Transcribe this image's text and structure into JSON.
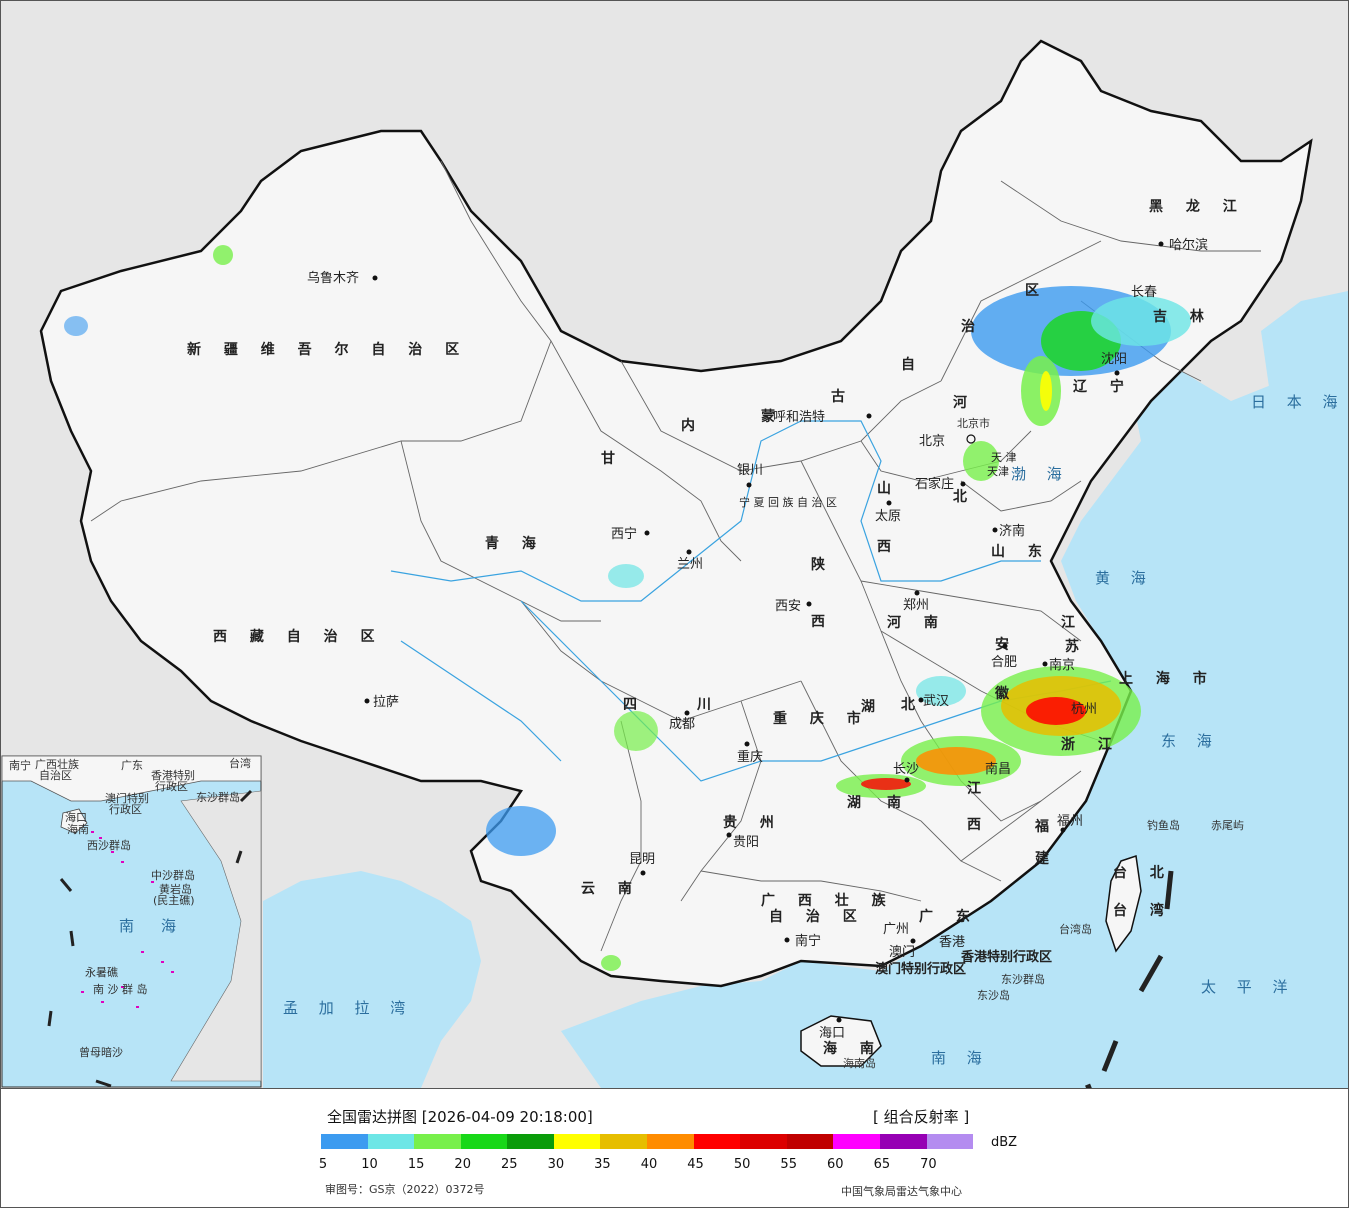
{
  "map": {
    "provinces": [
      "新 疆 维 吾 尔 自 治 区",
      "西 藏 自 治 区",
      "青 海",
      "甘",
      "内",
      "蒙",
      "古",
      "黑 龙 江",
      "吉 林",
      "辽 宁",
      "河",
      "北",
      "山",
      "西",
      "陕",
      "西",
      "河 南",
      "山 东",
      "江",
      "苏",
      "安",
      "徽",
      "湖",
      "北",
      "四",
      "川",
      "重 庆 市",
      "贵 州",
      "云 南",
      "湖",
      "南",
      "江",
      "西",
      "浙 江",
      "福",
      "建",
      "广 西 壮 族",
      "自 治 区",
      "广 东",
      "海 南",
      "台 北",
      "台 湾",
      "上 海 市",
      "天 津",
      "宁 夏 回 族 自 治 区",
      "区",
      "治",
      "自"
    ],
    "cities": [
      "乌鲁木齐",
      "拉萨",
      "西宁",
      "兰州",
      "银川",
      "呼和浩特",
      "北京",
      "天津",
      "石家庄",
      "太原",
      "济南",
      "郑州",
      "西安",
      "合肥",
      "南京",
      "上海",
      "武汉",
      "成都",
      "重庆",
      "长沙",
      "南昌",
      "杭州",
      "贵阳",
      "昆明",
      "福州",
      "南宁",
      "广州",
      "澳门",
      "香港",
      "海口",
      "台北",
      "沈阳",
      "长春",
      "哈尔滨",
      "北京市"
    ],
    "seas": [
      "日 本 海",
      "渤 海",
      "黄 海",
      "东 海",
      "太 平 洋",
      "南 海",
      "孟 加 拉 湾"
    ],
    "islands": [
      "钓鱼岛",
      "赤尾屿",
      "台湾岛",
      "东沙群岛",
      "东沙岛",
      "海南岛"
    ],
    "special": [
      "香港特别行政区",
      "澳门特别行政区"
    ],
    "inset": {
      "labels": [
        "广西壮族",
        "自治区",
        "广东",
        "澳门特别",
        "行政区",
        "香港特别",
        "行政区",
        "海口",
        "海南",
        "西沙群岛",
        "中沙群岛",
        "黄岩岛",
        "(民主礁)",
        "南",
        "海",
        "永暑礁",
        "南 沙 群 岛",
        "曾母暗沙",
        "东沙群岛",
        "台湾",
        "南宁"
      ]
    }
  },
  "legend": {
    "title": "全国雷达拼图 [2026-04-09 20:18:00]",
    "product": "[ 组合反射率 ]",
    "unit": "dBZ",
    "ticks": [
      "5",
      "10",
      "15",
      "20",
      "25",
      "30",
      "35",
      "40",
      "45",
      "50",
      "55",
      "60",
      "65",
      "70"
    ],
    "colors": [
      "#3c9bf0",
      "#6de6e6",
      "#78f04b",
      "#18d818",
      "#0a9c0a",
      "#ffff00",
      "#e6be00",
      "#ff8c00",
      "#ff0000",
      "#dc0000",
      "#c00000",
      "#ff00ff",
      "#9600b4",
      "#b48cf0"
    ],
    "review_no": "审图号：GS京（2022）0372号",
    "org": "中国气象局雷达气象中心"
  }
}
